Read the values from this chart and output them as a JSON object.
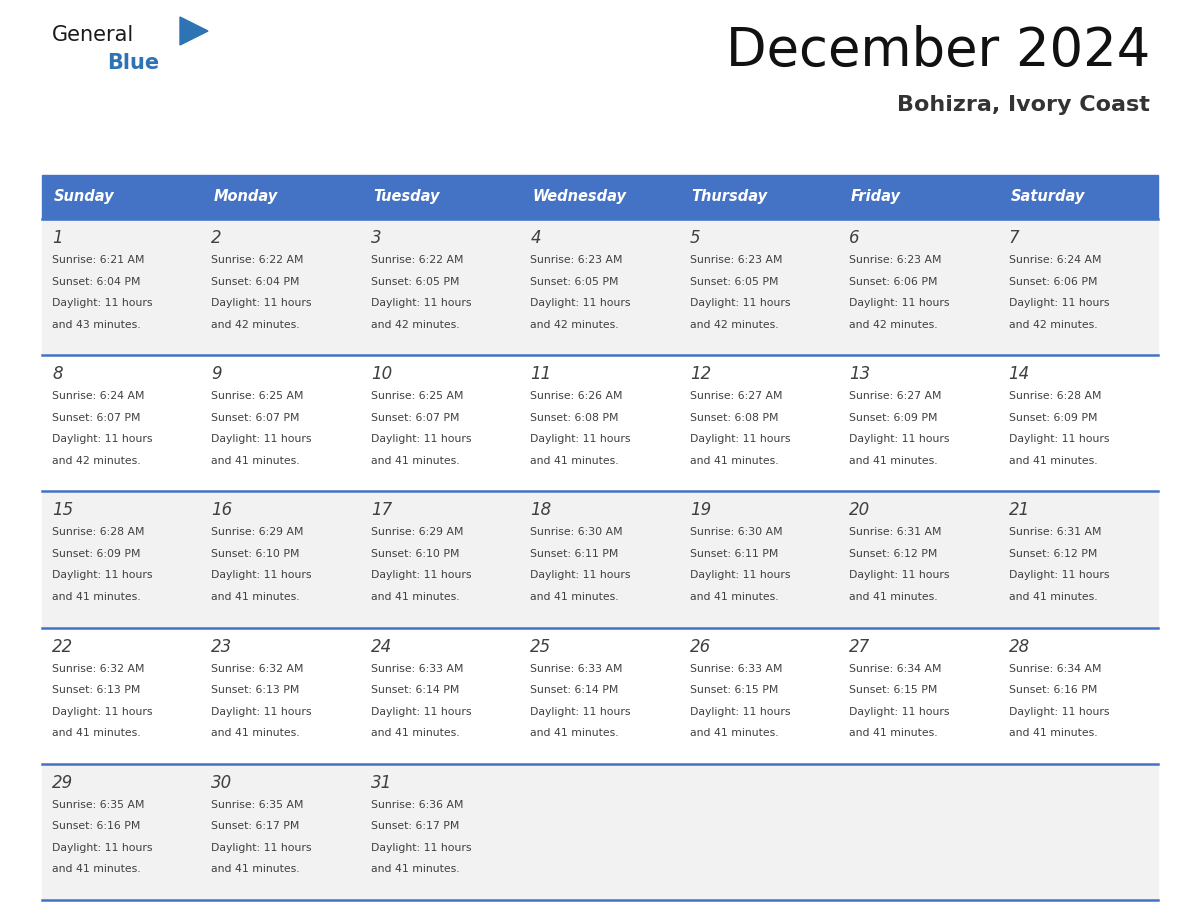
{
  "title": "December 2024",
  "subtitle": "Bohizra, Ivory Coast",
  "header_bg_color": "#4472C4",
  "header_text_color": "#FFFFFF",
  "weekdays": [
    "Sunday",
    "Monday",
    "Tuesday",
    "Wednesday",
    "Thursday",
    "Friday",
    "Saturday"
  ],
  "row_bg_light": "#F2F2F2",
  "row_bg_white": "#FFFFFF",
  "grid_line_color": "#4472C4",
  "text_color": "#404040",
  "day_num_color": "#404040",
  "logo_black": "#1A1A1A",
  "logo_blue": "#2E74B5",
  "days": [
    {
      "day": 1,
      "col": 0,
      "row": 0,
      "sunrise": "6:21 AM",
      "sunset": "6:04 PM",
      "daylight": "11 hours and 43 minutes."
    },
    {
      "day": 2,
      "col": 1,
      "row": 0,
      "sunrise": "6:22 AM",
      "sunset": "6:04 PM",
      "daylight": "11 hours and 42 minutes."
    },
    {
      "day": 3,
      "col": 2,
      "row": 0,
      "sunrise": "6:22 AM",
      "sunset": "6:05 PM",
      "daylight": "11 hours and 42 minutes."
    },
    {
      "day": 4,
      "col": 3,
      "row": 0,
      "sunrise": "6:23 AM",
      "sunset": "6:05 PM",
      "daylight": "11 hours and 42 minutes."
    },
    {
      "day": 5,
      "col": 4,
      "row": 0,
      "sunrise": "6:23 AM",
      "sunset": "6:05 PM",
      "daylight": "11 hours and 42 minutes."
    },
    {
      "day": 6,
      "col": 5,
      "row": 0,
      "sunrise": "6:23 AM",
      "sunset": "6:06 PM",
      "daylight": "11 hours and 42 minutes."
    },
    {
      "day": 7,
      "col": 6,
      "row": 0,
      "sunrise": "6:24 AM",
      "sunset": "6:06 PM",
      "daylight": "11 hours and 42 minutes."
    },
    {
      "day": 8,
      "col": 0,
      "row": 1,
      "sunrise": "6:24 AM",
      "sunset": "6:07 PM",
      "daylight": "11 hours and 42 minutes."
    },
    {
      "day": 9,
      "col": 1,
      "row": 1,
      "sunrise": "6:25 AM",
      "sunset": "6:07 PM",
      "daylight": "11 hours and 41 minutes."
    },
    {
      "day": 10,
      "col": 2,
      "row": 1,
      "sunrise": "6:25 AM",
      "sunset": "6:07 PM",
      "daylight": "11 hours and 41 minutes."
    },
    {
      "day": 11,
      "col": 3,
      "row": 1,
      "sunrise": "6:26 AM",
      "sunset": "6:08 PM",
      "daylight": "11 hours and 41 minutes."
    },
    {
      "day": 12,
      "col": 4,
      "row": 1,
      "sunrise": "6:27 AM",
      "sunset": "6:08 PM",
      "daylight": "11 hours and 41 minutes."
    },
    {
      "day": 13,
      "col": 5,
      "row": 1,
      "sunrise": "6:27 AM",
      "sunset": "6:09 PM",
      "daylight": "11 hours and 41 minutes."
    },
    {
      "day": 14,
      "col": 6,
      "row": 1,
      "sunrise": "6:28 AM",
      "sunset": "6:09 PM",
      "daylight": "11 hours and 41 minutes."
    },
    {
      "day": 15,
      "col": 0,
      "row": 2,
      "sunrise": "6:28 AM",
      "sunset": "6:09 PM",
      "daylight": "11 hours and 41 minutes."
    },
    {
      "day": 16,
      "col": 1,
      "row": 2,
      "sunrise": "6:29 AM",
      "sunset": "6:10 PM",
      "daylight": "11 hours and 41 minutes."
    },
    {
      "day": 17,
      "col": 2,
      "row": 2,
      "sunrise": "6:29 AM",
      "sunset": "6:10 PM",
      "daylight": "11 hours and 41 minutes."
    },
    {
      "day": 18,
      "col": 3,
      "row": 2,
      "sunrise": "6:30 AM",
      "sunset": "6:11 PM",
      "daylight": "11 hours and 41 minutes."
    },
    {
      "day": 19,
      "col": 4,
      "row": 2,
      "sunrise": "6:30 AM",
      "sunset": "6:11 PM",
      "daylight": "11 hours and 41 minutes."
    },
    {
      "day": 20,
      "col": 5,
      "row": 2,
      "sunrise": "6:31 AM",
      "sunset": "6:12 PM",
      "daylight": "11 hours and 41 minutes."
    },
    {
      "day": 21,
      "col": 6,
      "row": 2,
      "sunrise": "6:31 AM",
      "sunset": "6:12 PM",
      "daylight": "11 hours and 41 minutes."
    },
    {
      "day": 22,
      "col": 0,
      "row": 3,
      "sunrise": "6:32 AM",
      "sunset": "6:13 PM",
      "daylight": "11 hours and 41 minutes."
    },
    {
      "day": 23,
      "col": 1,
      "row": 3,
      "sunrise": "6:32 AM",
      "sunset": "6:13 PM",
      "daylight": "11 hours and 41 minutes."
    },
    {
      "day": 24,
      "col": 2,
      "row": 3,
      "sunrise": "6:33 AM",
      "sunset": "6:14 PM",
      "daylight": "11 hours and 41 minutes."
    },
    {
      "day": 25,
      "col": 3,
      "row": 3,
      "sunrise": "6:33 AM",
      "sunset": "6:14 PM",
      "daylight": "11 hours and 41 minutes."
    },
    {
      "day": 26,
      "col": 4,
      "row": 3,
      "sunrise": "6:33 AM",
      "sunset": "6:15 PM",
      "daylight": "11 hours and 41 minutes."
    },
    {
      "day": 27,
      "col": 5,
      "row": 3,
      "sunrise": "6:34 AM",
      "sunset": "6:15 PM",
      "daylight": "11 hours and 41 minutes."
    },
    {
      "day": 28,
      "col": 6,
      "row": 3,
      "sunrise": "6:34 AM",
      "sunset": "6:16 PM",
      "daylight": "11 hours and 41 minutes."
    },
    {
      "day": 29,
      "col": 0,
      "row": 4,
      "sunrise": "6:35 AM",
      "sunset": "6:16 PM",
      "daylight": "11 hours and 41 minutes."
    },
    {
      "day": 30,
      "col": 1,
      "row": 4,
      "sunrise": "6:35 AM",
      "sunset": "6:17 PM",
      "daylight": "11 hours and 41 minutes."
    },
    {
      "day": 31,
      "col": 2,
      "row": 4,
      "sunrise": "6:36 AM",
      "sunset": "6:17 PM",
      "daylight": "11 hours and 41 minutes."
    }
  ],
  "fig_width": 11.88,
  "fig_height": 9.18,
  "dpi": 100
}
